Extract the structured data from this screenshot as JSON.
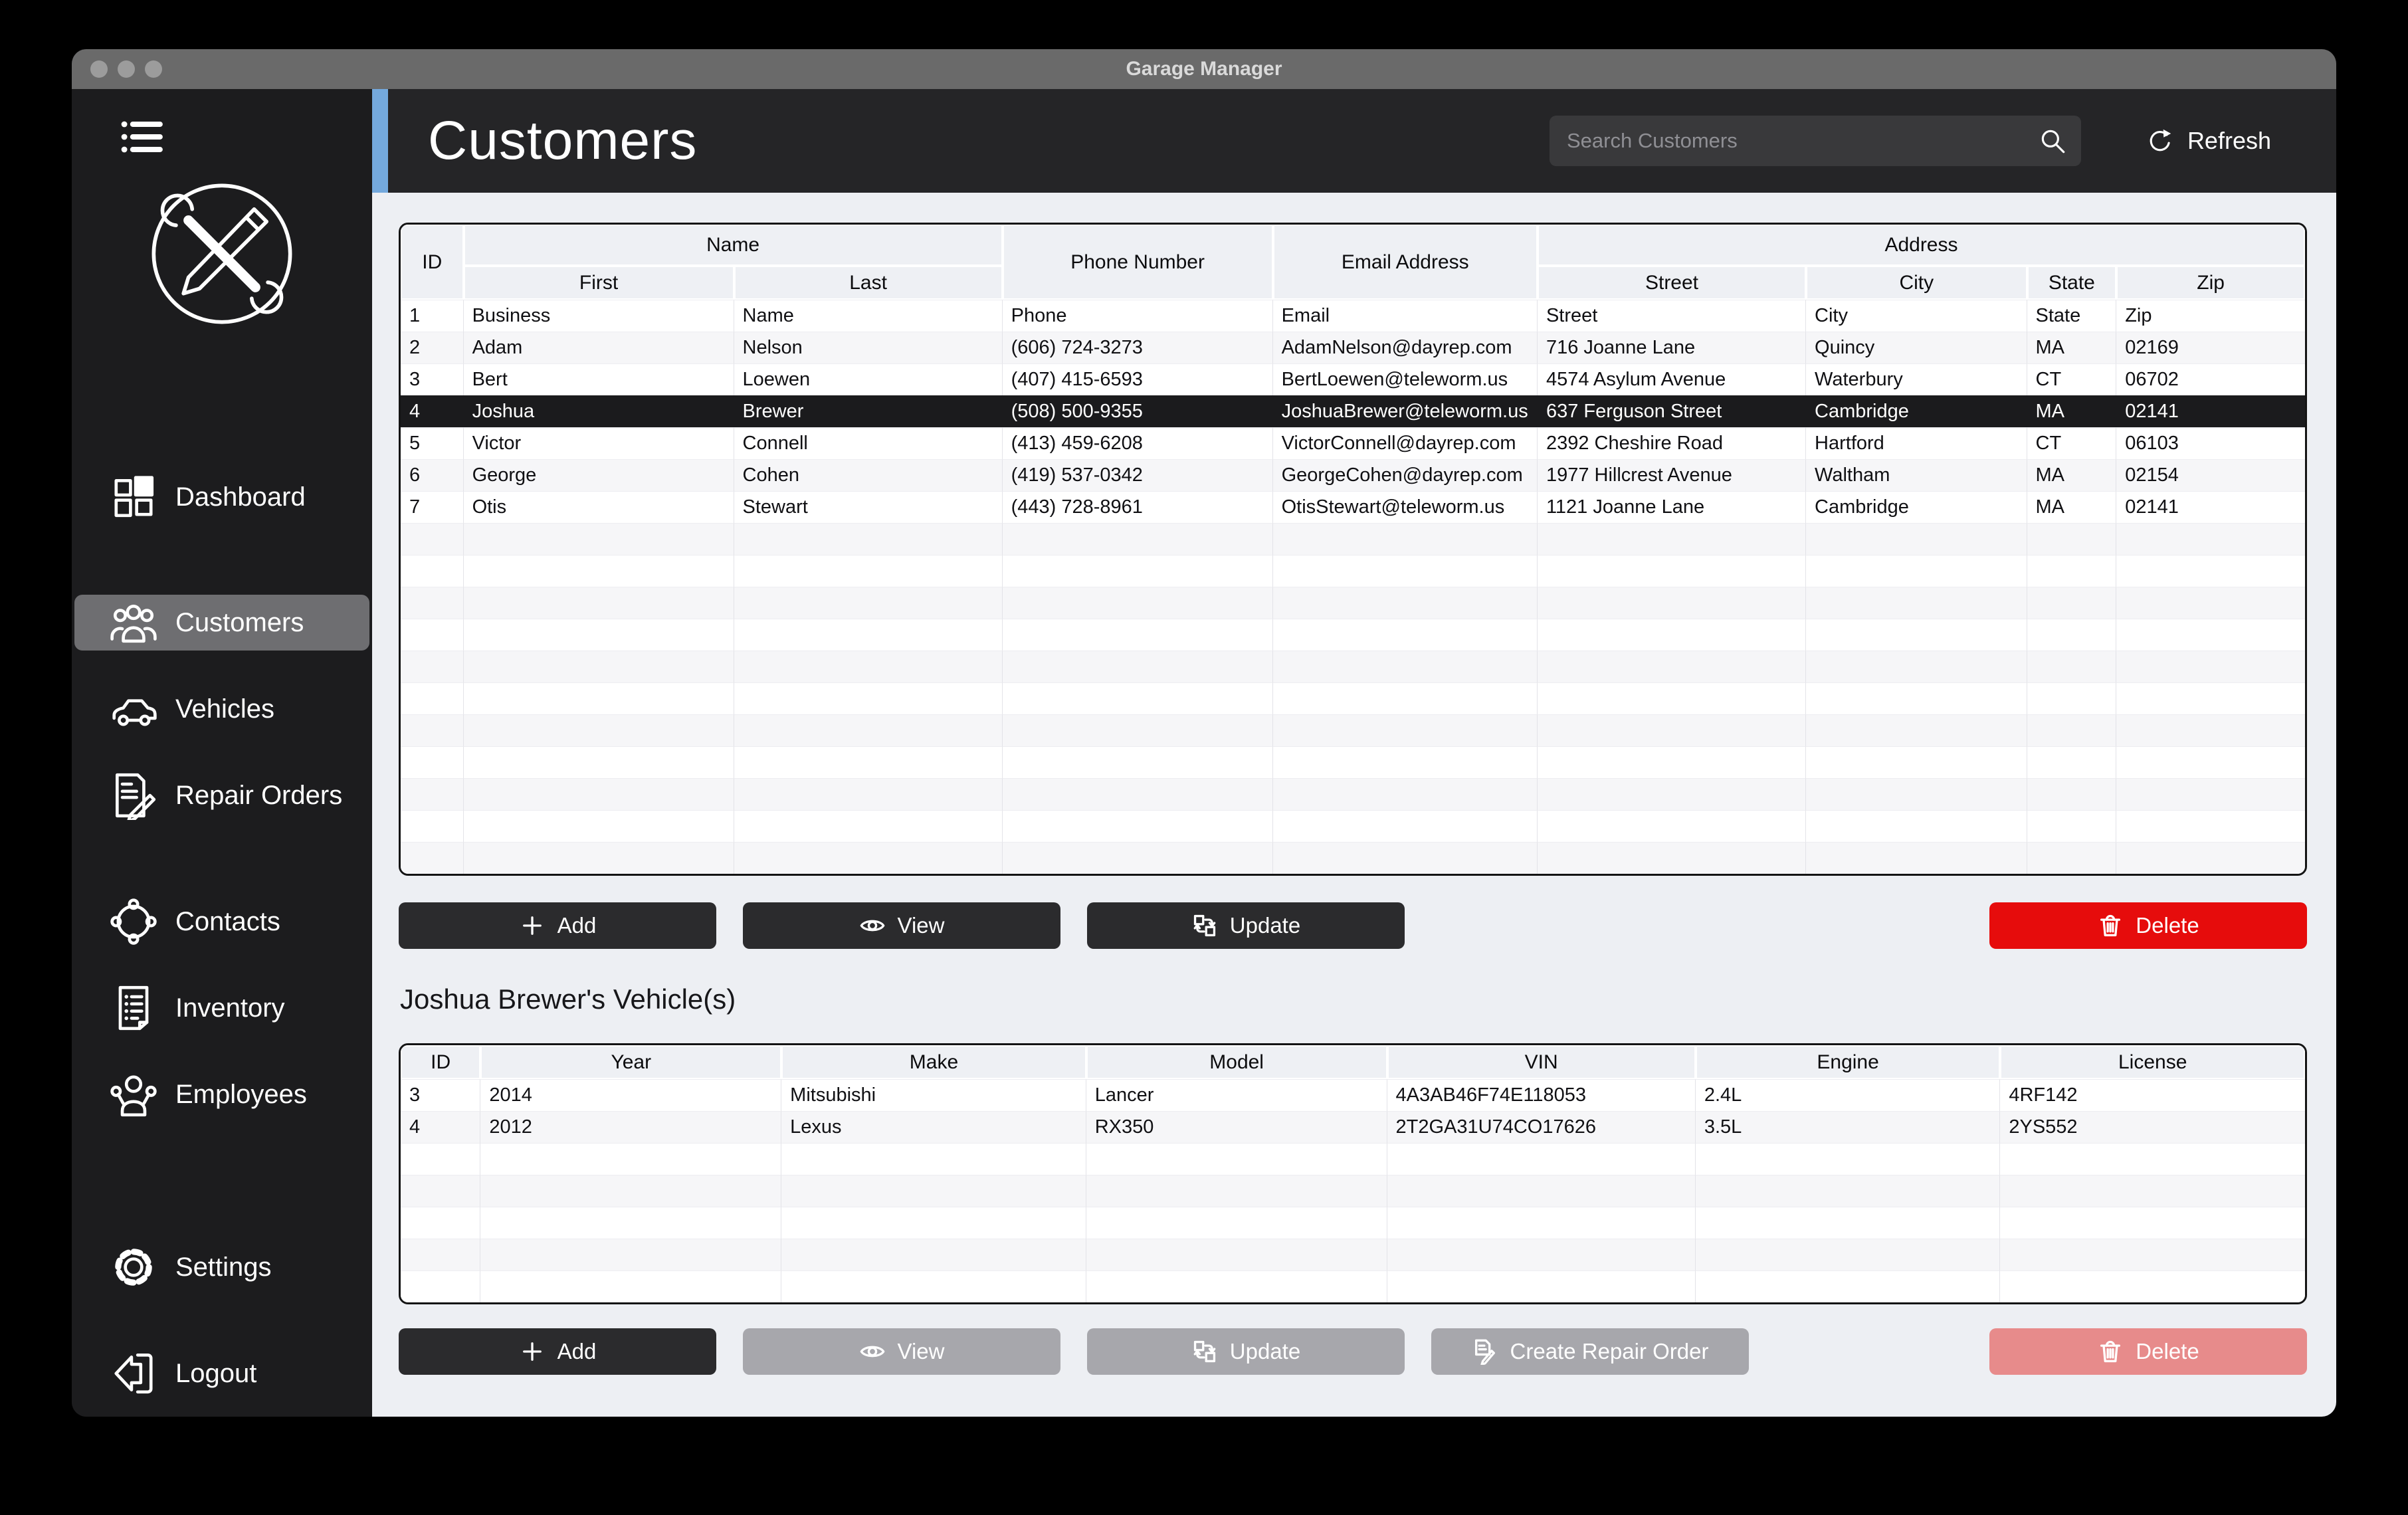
{
  "window": {
    "title": "Garage Manager"
  },
  "sidebar": {
    "items": [
      {
        "label": "Dashboard"
      },
      {
        "label": "Customers",
        "active": true
      },
      {
        "label": "Vehicles"
      },
      {
        "label": "Repair Orders"
      },
      {
        "label": "Contacts"
      },
      {
        "label": "Inventory"
      },
      {
        "label": "Employees"
      },
      {
        "label": "Settings"
      },
      {
        "label": "Logout"
      }
    ]
  },
  "header": {
    "title": "Customers",
    "search_placeholder": "Search Customers",
    "refresh_label": "Refresh"
  },
  "customers_table": {
    "group_headers": {
      "id": "ID",
      "name": "Name",
      "phone": "Phone Number",
      "email": "Email Address",
      "address": "Address"
    },
    "sub_headers": {
      "first": "First",
      "last": "Last",
      "street": "Street",
      "city": "City",
      "state": "State",
      "zip": "Zip"
    },
    "rows": [
      [
        "1",
        "Business",
        "Name",
        "Phone",
        "Email",
        "Street",
        "City",
        "State",
        "Zip"
      ],
      [
        "2",
        "Adam",
        "Nelson",
        "(606) 724-3273",
        "AdamNelson@dayrep.com",
        "716 Joanne Lane",
        "Quincy",
        "MA",
        "02169"
      ],
      [
        "3",
        "Bert",
        "Loewen",
        "(407) 415-6593",
        "BertLoewen@teleworm.us",
        "4574 Asylum Avenue",
        "Waterbury",
        "CT",
        "06702"
      ],
      [
        "4",
        "Joshua",
        "Brewer",
        "(508) 500-9355",
        "JoshuaBrewer@teleworm.us",
        "637 Ferguson Street",
        "Cambridge",
        "MA",
        "02141"
      ],
      [
        "5",
        "Victor",
        "Connell",
        "(413) 459-6208",
        "VictorConnell@dayrep.com",
        "2392 Cheshire Road",
        "Hartford",
        "CT",
        "06103"
      ],
      [
        "6",
        "George",
        "Cohen",
        "(419) 537-0342",
        "GeorgeCohen@dayrep.com",
        "1977 Hillcrest Avenue",
        "Waltham",
        "MA",
        "02154"
      ],
      [
        "7",
        "Otis",
        "Stewart",
        "(443) 728-8961",
        "OtisStewart@teleworm.us",
        "1121 Joanne Lane",
        "Cambridge",
        "MA",
        "02141"
      ]
    ],
    "selected_row_index": 3,
    "empty_row_count": 11
  },
  "customer_actions": {
    "add": "Add",
    "view": "View",
    "update": "Update",
    "delete": "Delete"
  },
  "vehicles_section": {
    "title": "Joshua Brewer's Vehicle(s)",
    "columns": [
      "ID",
      "Year",
      "Make",
      "Model",
      "VIN",
      "Engine",
      "License"
    ],
    "rows": [
      [
        "3",
        "2014",
        "Mitsubishi",
        "Lancer",
        "4A3AB46F74E118053",
        "2.4L",
        "4RF142"
      ],
      [
        "4",
        "2012",
        "Lexus",
        "RX350",
        "2T2GA31U74CO17626",
        "3.5L",
        "2YS552"
      ]
    ],
    "empty_row_count": 5
  },
  "vehicle_actions": {
    "add": "Add",
    "view": "View",
    "update": "Update",
    "create_repair_order": "Create Repair Order",
    "delete": "Delete"
  },
  "colors": {
    "accent_blue": "#74a9dd",
    "titlebar_gray": "#6a6a6a",
    "sidebar_bg": "#1c1c1e",
    "header_bg": "#252527",
    "content_bg": "#edeff3",
    "selected_row": "#1b1b1d",
    "button_dark": "#2b2b2d",
    "delete_red": "#e60c0c",
    "disabled_gray": "#a7a7ac",
    "disabled_red": "#e78b8b"
  }
}
